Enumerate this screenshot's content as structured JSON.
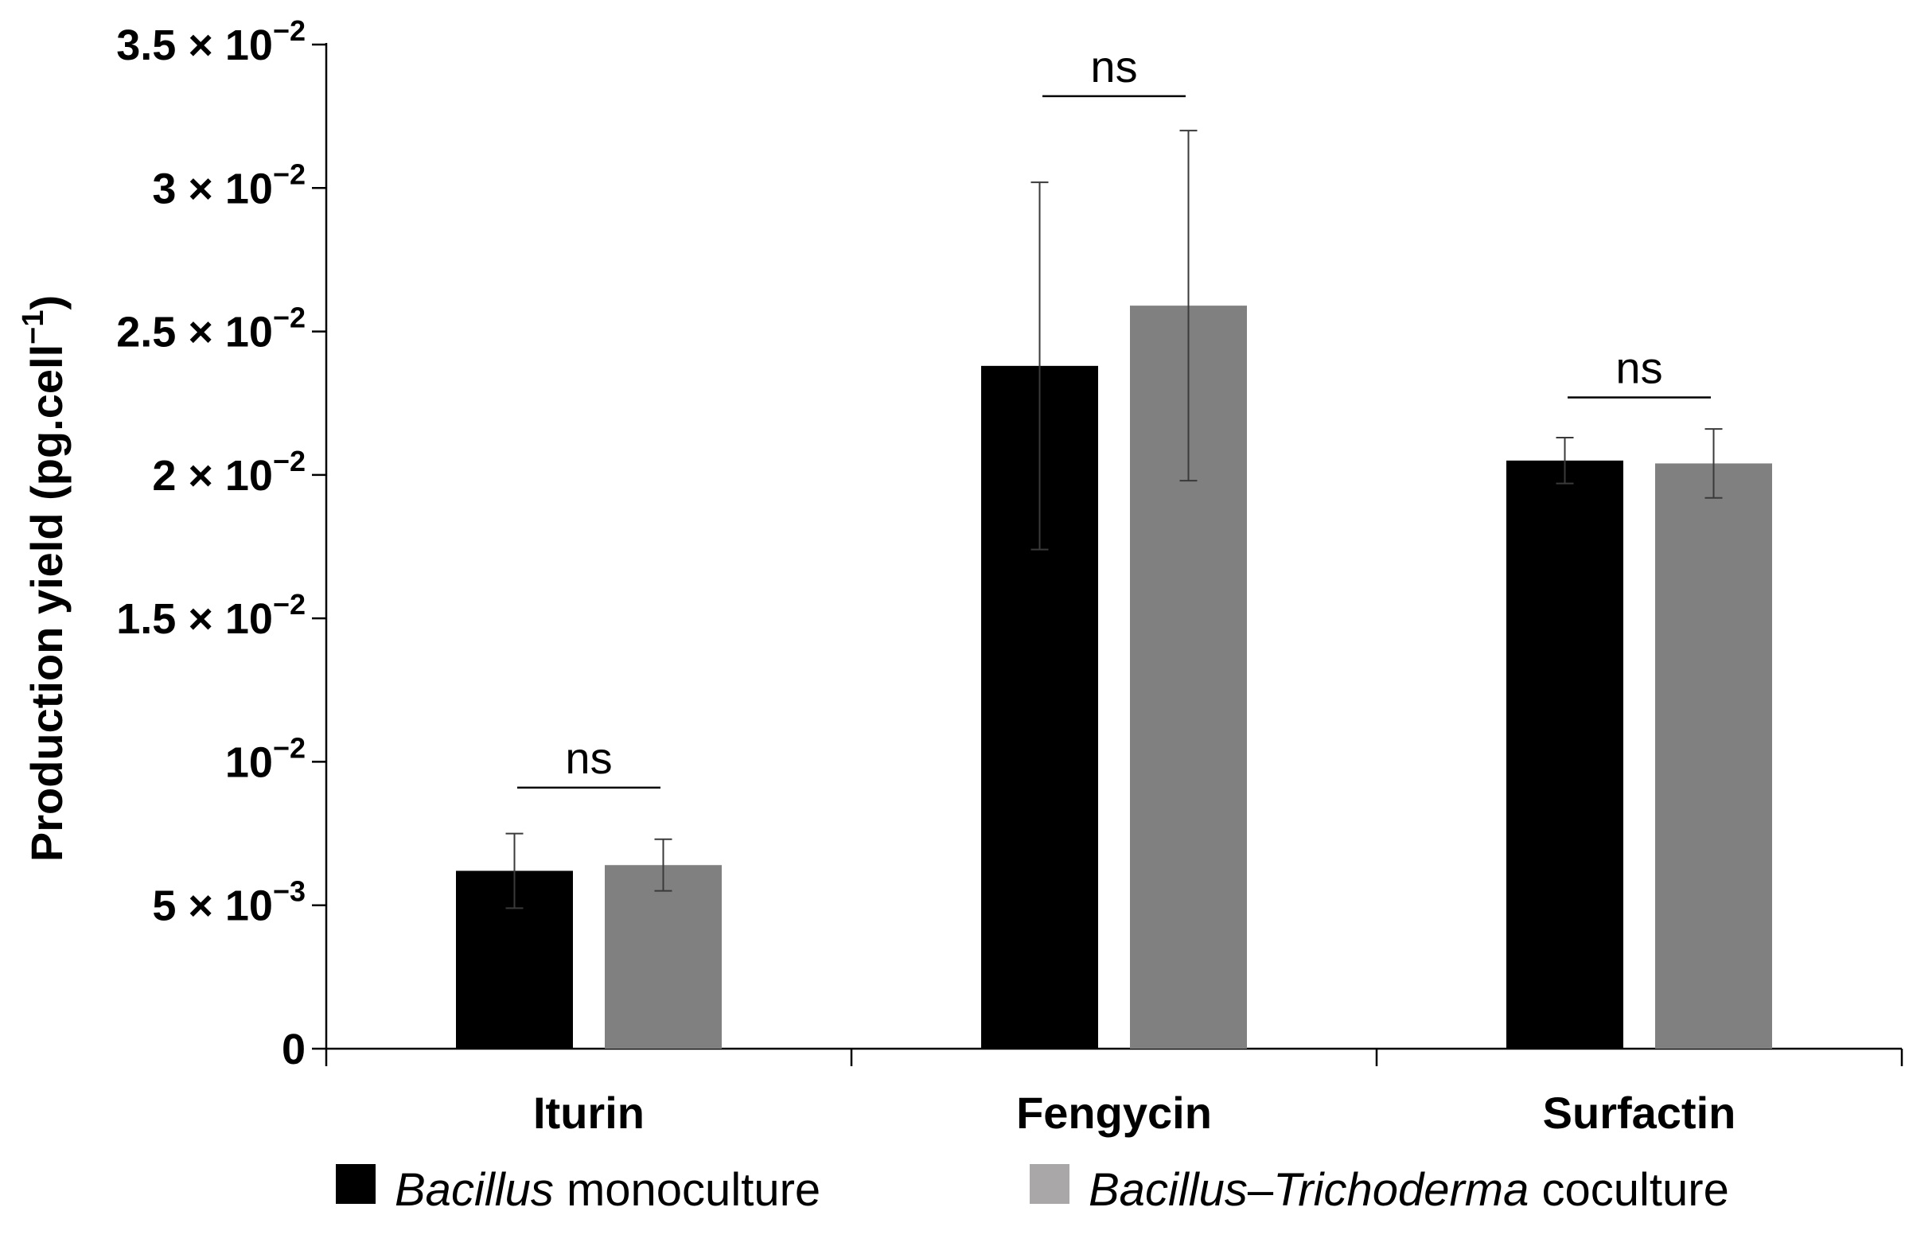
{
  "chart_data": {
    "type": "bar",
    "categories": [
      "Iturin",
      "Fengycin",
      "Surfactin"
    ],
    "series": [
      {
        "name": "Bacillus monoculture",
        "name_parts": [
          {
            "text": "Bacillus",
            "italic": true
          },
          {
            "text": " monoculture",
            "italic": false
          }
        ],
        "color": "#000000",
        "values": [
          0.0062,
          0.0238,
          0.0205
        ],
        "errors": [
          0.0013,
          0.0064,
          0.0008
        ]
      },
      {
        "name": "Bacillus–Trichoderma coculture",
        "name_parts": [
          {
            "text": "Bacillus",
            "italic": true
          },
          {
            "text": "–",
            "italic": false
          },
          {
            "text": "Trichoderma",
            "italic": true
          },
          {
            "text": " coculture",
            "italic": false
          }
        ],
        "color": "#808080",
        "legend_color": "#a9a7a7",
        "values": [
          0.0064,
          0.0259,
          0.0204
        ],
        "errors": [
          0.0009,
          0.0061,
          0.0012
        ]
      }
    ],
    "ylabel": {
      "text": "Production yield (pg.cell",
      "sup": "−1",
      "close": ")"
    },
    "xlabel": "",
    "ylim": [
      0,
      0.035
    ],
    "yticks": [
      {
        "value": 0,
        "label": "0",
        "sup": ""
      },
      {
        "value": 0.005,
        "label": "5 × 10",
        "sup": "−3"
      },
      {
        "value": 0.01,
        "label": "10",
        "sup": "−2"
      },
      {
        "value": 0.015,
        "label": "1.5 × 10",
        "sup": "−2"
      },
      {
        "value": 0.02,
        "label": "2 × 10",
        "sup": "−2"
      },
      {
        "value": 0.025,
        "label": "2.5 × 10",
        "sup": "−2"
      },
      {
        "value": 0.03,
        "label": "3 × 10",
        "sup": "−2"
      },
      {
        "value": 0.035,
        "label": "3.5 × 10",
        "sup": "−2"
      }
    ],
    "annotations": [
      {
        "category": "Iturin",
        "text": "ns",
        "value": 0.0091
      },
      {
        "category": "Fengycin",
        "text": "ns",
        "value": 0.0332
      },
      {
        "category": "Surfactin",
        "text": "ns",
        "value": 0.0227
      }
    ],
    "grid": false,
    "legend_position": "bottom"
  }
}
